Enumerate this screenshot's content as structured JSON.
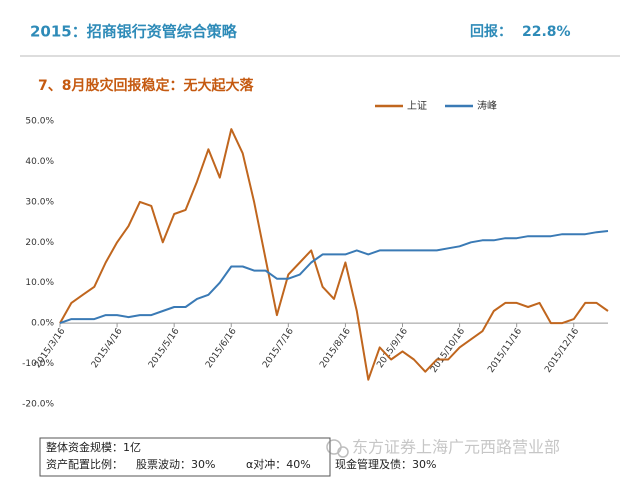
{
  "header": {
    "title": "2015：招商银行资管综合策略",
    "return_label": "回报：",
    "return_value": "22.8%"
  },
  "subtitle": "7、8月股灾回报稳定：无大起大落",
  "chart_data": {
    "type": "line",
    "categories": [
      "2015/3/16",
      null,
      null,
      null,
      null,
      "2015/4/16",
      null,
      null,
      null,
      null,
      "2015/5/16",
      null,
      null,
      null,
      null,
      "2015/6/16",
      null,
      null,
      null,
      null,
      "2015/7/16",
      null,
      null,
      null,
      null,
      "2015/8/16",
      null,
      null,
      null,
      null,
      "2015/9/16",
      null,
      null,
      null,
      null,
      "2015/10/16",
      null,
      null,
      null,
      null,
      "2015/11/16",
      null,
      null,
      null,
      null,
      "2015/12/16",
      null,
      null,
      null
    ],
    "series": [
      {
        "name": "上证",
        "color": "#c0661e",
        "values": [
          0,
          5,
          7,
          9,
          15,
          20,
          24,
          30,
          29,
          20,
          27,
          28,
          35,
          43,
          36,
          48,
          42,
          30,
          16,
          2,
          12,
          15,
          18,
          9,
          6,
          15,
          3,
          -14,
          -6,
          -9,
          -7,
          -9,
          -12,
          -9,
          -9,
          -6,
          -4,
          -2,
          3,
          5,
          5,
          4,
          5,
          0,
          0,
          1,
          5,
          5,
          3
        ]
      },
      {
        "name": "涛峰",
        "color": "#3a7ab5",
        "values": [
          0,
          1,
          1,
          1,
          2,
          2,
          1.5,
          2,
          2,
          3,
          4,
          4,
          6,
          7,
          10,
          14,
          14,
          13,
          13,
          11,
          11,
          12,
          15,
          17,
          17,
          17,
          18,
          17,
          18,
          18,
          18,
          18,
          18,
          18,
          18.5,
          19,
          20,
          20.5,
          20.5,
          21,
          21,
          21.5,
          21.5,
          21.5,
          22,
          22,
          22,
          22.5,
          22.8
        ]
      }
    ],
    "ylim": [
      -20,
      50
    ],
    "yticks": [
      {
        "value": -20,
        "label": "-20.0%"
      },
      {
        "value": -10,
        "label": "-10.0%"
      },
      {
        "value": 0,
        "label": "0.0%"
      },
      {
        "value": 10,
        "label": "10.0%"
      },
      {
        "value": 20,
        "label": "20.0%"
      },
      {
        "value": 30,
        "label": "30.0%"
      },
      {
        "value": 40,
        "label": "40.0%"
      },
      {
        "value": 50,
        "label": "50.0%"
      }
    ],
    "grid": false,
    "legend": "top-right"
  },
  "footer": {
    "scale": "整体资金规模：1亿",
    "allocation_label": "资产配置比例：",
    "items": [
      "股票波动：30%",
      "α对冲：40%",
      "现金管理及债：30%"
    ]
  },
  "watermark": "东方证券上海广元西路营业部"
}
